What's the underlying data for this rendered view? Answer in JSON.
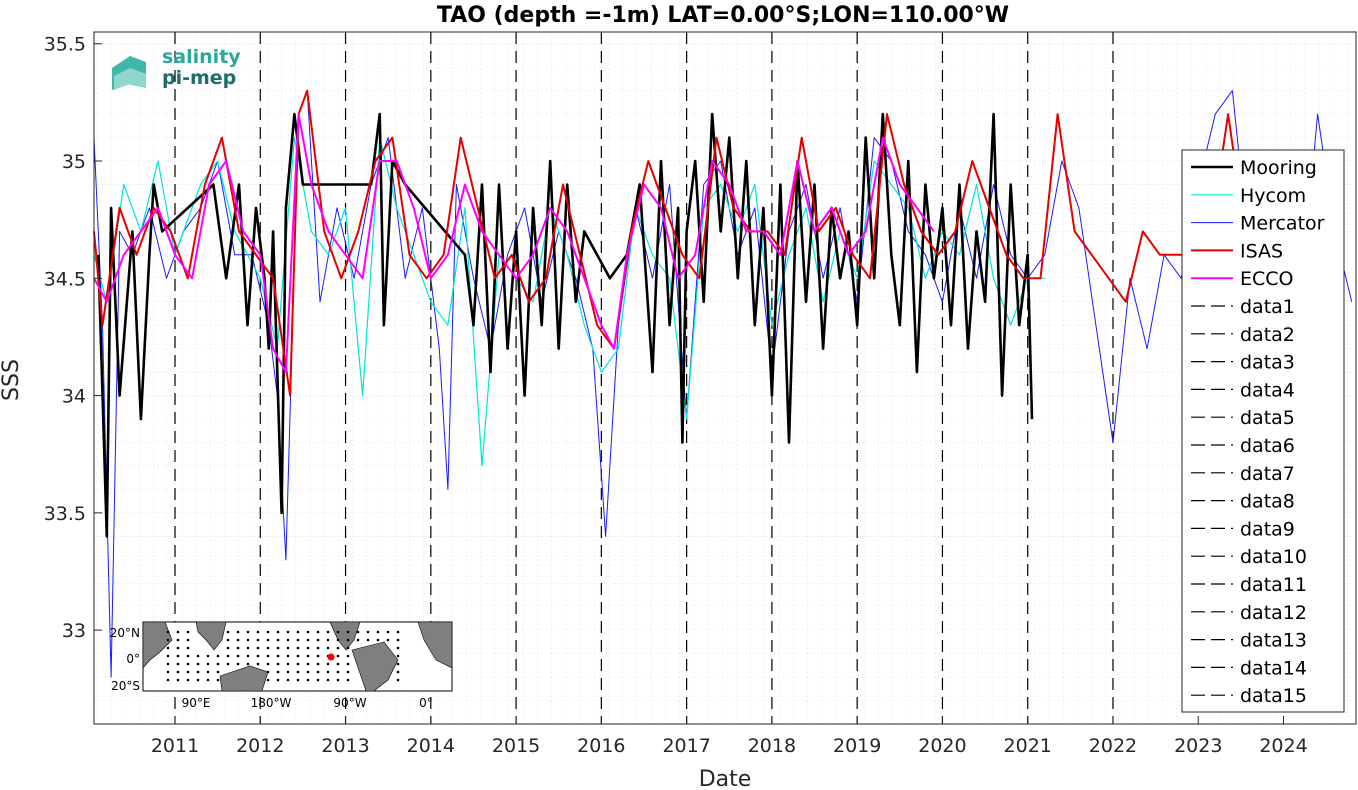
{
  "chart_data": {
    "type": "line",
    "title": "TAO (depth =-1m) LAT=0.00°S;LON=110.00°W",
    "xlabel": "Date",
    "ylabel": "SSS",
    "xlim": [
      2010.05,
      2024.85
    ],
    "ylim": [
      32.6,
      35.55
    ],
    "x_ticks": [
      "2011",
      "2012",
      "2013",
      "2014",
      "2015",
      "2016",
      "2017",
      "2018",
      "2019",
      "2020",
      "2021",
      "2022",
      "2023",
      "2024"
    ],
    "x_tick_values": [
      2011,
      2012,
      2013,
      2014,
      2015,
      2016,
      2017,
      2018,
      2019,
      2020,
      2021,
      2022,
      2023,
      2024
    ],
    "y_ticks": [
      "33",
      "33.5",
      "34",
      "34.5",
      "35",
      "35.5"
    ],
    "y_tick_values": [
      33,
      33.5,
      34,
      34.5,
      35,
      35.5
    ],
    "grid": true,
    "legend_position": "right",
    "year_boundaries": [
      2011,
      2012,
      2013,
      2014,
      2015,
      2016,
      2017,
      2018,
      2019,
      2020,
      2021,
      2022
    ],
    "series": [
      {
        "name": "Mooring",
        "color": "#000000",
        "width": 2.6,
        "x": [
          2010.1,
          2010.2,
          2010.25,
          2010.35,
          2010.5,
          2010.6,
          2010.7,
          2010.75,
          2010.85,
          2011.45,
          2011.6,
          2011.75,
          2011.85,
          2011.95,
          2012.05,
          2012.1,
          2012.15,
          2012.2,
          2012.25,
          2012.3,
          2012.4,
          2012.5,
          2013.3,
          2013.4,
          2013.45,
          2013.55,
          2013.7,
          2014.4,
          2014.5,
          2014.6,
          2014.7,
          2014.8,
          2014.9,
          2015.0,
          2015.1,
          2015.2,
          2015.3,
          2015.4,
          2015.5,
          2015.6,
          2015.7,
          2015.8,
          2016.1,
          2016.3,
          2016.45,
          2016.6,
          2016.7,
          2016.8,
          2016.9,
          2016.95,
          2017.0,
          2017.1,
          2017.2,
          2017.3,
          2017.4,
          2017.5,
          2017.6,
          2017.7,
          2017.8,
          2017.9,
          2018.0,
          2018.1,
          2018.2,
          2018.3,
          2018.4,
          2018.5,
          2018.6,
          2018.7,
          2018.8,
          2018.9,
          2019.0,
          2019.1,
          2019.2,
          2019.3,
          2019.4,
          2019.5,
          2019.6,
          2019.7,
          2019.8,
          2019.9,
          2020.0,
          2020.1,
          2020.2,
          2020.3,
          2020.4,
          2020.5,
          2020.6,
          2020.7,
          2020.8,
          2020.9,
          2021.0,
          2021.05
        ],
        "y": [
          34.6,
          33.4,
          34.8,
          34.0,
          34.7,
          33.9,
          34.6,
          34.9,
          34.7,
          34.9,
          34.5,
          34.9,
          34.3,
          34.8,
          34.5,
          34.2,
          34.7,
          34.1,
          33.5,
          34.8,
          35.2,
          34.9,
          34.9,
          35.2,
          34.3,
          35.0,
          34.9,
          34.6,
          34.3,
          34.9,
          34.1,
          34.9,
          34.2,
          34.7,
          34.0,
          34.8,
          34.3,
          35.0,
          34.2,
          34.9,
          34.4,
          34.7,
          34.5,
          34.6,
          34.9,
          34.1,
          35.0,
          34.3,
          34.8,
          33.8,
          34.7,
          35.0,
          34.4,
          35.2,
          34.7,
          35.1,
          34.5,
          35.0,
          34.3,
          34.8,
          34.0,
          34.9,
          33.8,
          35.0,
          34.4,
          34.9,
          34.2,
          34.8,
          34.5,
          34.7,
          34.3,
          35.1,
          34.5,
          35.2,
          34.6,
          34.3,
          35.0,
          34.1,
          34.9,
          34.5,
          34.8,
          34.3,
          34.9,
          34.2,
          34.7,
          34.4,
          35.2,
          34.0,
          34.9,
          34.3,
          34.6,
          33.9
        ]
      },
      {
        "name": "Hycom",
        "color": "#00e5d8",
        "width": 1.2,
        "x": [
          2010.05,
          2010.2,
          2010.4,
          2010.6,
          2010.8,
          2011.0,
          2011.3,
          2011.5,
          2011.7,
          2012.0,
          2012.2,
          2012.4,
          2012.6,
          2012.8,
          2013.0,
          2013.2,
          2013.4,
          2013.6,
          2013.8,
          2014.0,
          2014.2,
          2014.4,
          2014.6,
          2014.8,
          2015.0,
          2015.2,
          2015.4,
          2015.6,
          2015.8,
          2016.0,
          2016.2,
          2016.4,
          2016.6,
          2016.8,
          2017.0,
          2017.2,
          2017.4,
          2017.6,
          2017.8,
          2018.0,
          2018.2,
          2018.4,
          2018.6,
          2018.8,
          2019.0,
          2019.2,
          2019.4,
          2019.6,
          2019.8,
          2020.0,
          2020.2,
          2020.4,
          2020.6,
          2020.8,
          2021.0,
          2021.2
        ],
        "y": [
          34.6,
          34.4,
          34.9,
          34.7,
          35.0,
          34.6,
          34.9,
          35.0,
          34.7,
          34.5,
          34.2,
          35.1,
          34.7,
          34.6,
          34.8,
          34.0,
          35.1,
          34.8,
          34.6,
          34.4,
          34.3,
          34.8,
          33.7,
          34.6,
          34.5,
          34.4,
          34.8,
          34.6,
          34.3,
          34.1,
          34.2,
          34.8,
          34.6,
          34.5,
          33.9,
          34.8,
          34.9,
          34.7,
          34.9,
          34.3,
          34.6,
          34.8,
          34.4,
          34.7,
          34.5,
          35.0,
          34.9,
          34.8,
          34.5,
          34.7,
          34.6,
          34.9,
          34.5,
          34.3,
          34.5,
          34.5
        ]
      },
      {
        "name": "Mercator",
        "color": "#1a1aff",
        "width": 1.0,
        "x": [
          2010.05,
          2010.15,
          2010.25,
          2010.35,
          2010.5,
          2010.7,
          2010.9,
          2011.1,
          2011.3,
          2011.5,
          2011.7,
          2011.9,
          2012.1,
          2012.2,
          2012.3,
          2012.45,
          2012.55,
          2012.7,
          2012.9,
          2013.1,
          2013.3,
          2013.5,
          2013.7,
          2013.9,
          2014.1,
          2014.2,
          2014.3,
          2014.5,
          2014.7,
          2014.9,
          2015.1,
          2015.3,
          2015.5,
          2015.7,
          2015.9,
          2016.05,
          2016.2,
          2016.4,
          2016.6,
          2016.8,
          2017.0,
          2017.2,
          2017.4,
          2017.6,
          2017.8,
          2018.0,
          2018.2,
          2018.4,
          2018.6,
          2018.8,
          2019.0,
          2019.2,
          2019.4,
          2019.6,
          2019.8,
          2020.0,
          2020.2,
          2020.4,
          2020.6,
          2020.8,
          2021.0,
          2021.2,
          2021.4,
          2021.6,
          2021.8,
          2022.0,
          2022.2,
          2022.4,
          2022.6,
          2022.8,
          2023.0,
          2023.2,
          2023.4,
          2023.6,
          2023.8,
          2024.0,
          2024.2,
          2024.4,
          2024.6,
          2024.8
        ],
        "y": [
          35.1,
          34.3,
          32.8,
          34.7,
          34.6,
          34.8,
          34.5,
          34.7,
          34.8,
          35.0,
          34.6,
          34.6,
          34.3,
          34.0,
          33.3,
          35.2,
          35.3,
          34.4,
          34.8,
          34.5,
          34.9,
          35.1,
          34.5,
          34.8,
          34.2,
          33.6,
          34.9,
          34.5,
          34.2,
          34.6,
          34.8,
          34.4,
          34.7,
          34.5,
          34.2,
          33.4,
          34.3,
          34.8,
          34.5,
          34.9,
          33.9,
          34.9,
          35.0,
          34.6,
          34.8,
          34.1,
          34.7,
          34.9,
          34.5,
          34.8,
          34.4,
          35.1,
          35.0,
          34.7,
          34.6,
          34.4,
          34.8,
          34.5,
          34.9,
          34.6,
          34.5,
          34.6,
          35.0,
          34.8,
          34.3,
          33.8,
          34.5,
          34.2,
          34.6,
          34.5,
          34.9,
          35.2,
          35.3,
          34.6,
          34.8,
          34.6,
          34.4,
          35.2,
          34.7,
          34.4
        ]
      },
      {
        "name": "ISAS",
        "color": "#e60000",
        "width": 2.0,
        "x": [
          2010.05,
          2010.15,
          2010.35,
          2010.55,
          2010.75,
          2010.95,
          2011.15,
          2011.35,
          2011.55,
          2011.75,
          2011.95,
          2012.15,
          2012.35,
          2012.45,
          2012.55,
          2012.75,
          2012.95,
          2013.15,
          2013.35,
          2013.55,
          2013.75,
          2013.95,
          2014.15,
          2014.35,
          2014.55,
          2014.75,
          2014.95,
          2015.15,
          2015.35,
          2015.55,
          2015.75,
          2015.95,
          2016.15,
          2016.35,
          2016.55,
          2016.75,
          2016.95,
          2017.15,
          2017.35,
          2017.55,
          2017.75,
          2017.95,
          2018.15,
          2018.35,
          2018.55,
          2018.75,
          2018.95,
          2019.15,
          2019.35,
          2019.55,
          2019.75,
          2019.95,
          2020.15,
          2020.35,
          2020.55,
          2020.75,
          2020.95,
          2021.15,
          2021.35,
          2021.55,
          2021.75,
          2021.95,
          2022.15,
          2022.35,
          2022.55,
          2022.75,
          2022.95,
          2023.15,
          2023.35,
          2023.55,
          2023.75,
          2023.95,
          2024.15,
          2024.35
        ],
        "y": [
          34.7,
          34.3,
          34.8,
          34.6,
          34.8,
          34.7,
          34.5,
          34.9,
          35.1,
          34.7,
          34.6,
          34.5,
          34.0,
          35.2,
          35.3,
          34.7,
          34.5,
          34.7,
          35.0,
          35.1,
          34.6,
          34.5,
          34.6,
          35.1,
          34.8,
          34.5,
          34.6,
          34.4,
          34.5,
          34.9,
          34.6,
          34.3,
          34.2,
          34.7,
          35.0,
          34.8,
          34.6,
          34.5,
          35.1,
          34.8,
          34.7,
          34.7,
          34.6,
          35.1,
          34.7,
          34.8,
          34.6,
          34.5,
          35.2,
          34.9,
          34.7,
          34.6,
          34.7,
          35.0,
          34.8,
          34.6,
          34.5,
          34.5,
          35.2,
          34.7,
          34.6,
          34.5,
          34.4,
          34.7,
          34.6,
          34.6,
          34.6,
          34.7,
          35.2,
          34.7,
          34.6,
          34.6,
          34.7,
          35.0
        ]
      },
      {
        "name": "ECCO",
        "color": "#ff00ff",
        "width": 2.0,
        "x": [
          2010.05,
          2010.2,
          2010.4,
          2010.6,
          2010.8,
          2011.0,
          2011.2,
          2011.4,
          2011.6,
          2011.8,
          2012.0,
          2012.15,
          2012.3,
          2012.45,
          2012.6,
          2012.8,
          2013.0,
          2013.2,
          2013.4,
          2013.6,
          2013.8,
          2014.0,
          2014.2,
          2014.4,
          2014.6,
          2014.8,
          2015.0,
          2015.2,
          2015.4,
          2015.6,
          2015.8,
          2016.0,
          2016.15,
          2016.3,
          2016.5,
          2016.7,
          2016.9,
          2017.1,
          2017.3,
          2017.5,
          2017.7,
          2017.9,
          2018.1,
          2018.3,
          2018.5,
          2018.7,
          2018.9,
          2019.1,
          2019.3,
          2019.5,
          2019.7,
          2019.9
        ],
        "y": [
          34.5,
          34.4,
          34.6,
          34.7,
          34.8,
          34.6,
          34.5,
          34.9,
          35.0,
          34.7,
          34.6,
          34.2,
          34.1,
          35.2,
          34.9,
          34.7,
          34.6,
          34.5,
          35.0,
          35.0,
          34.8,
          34.5,
          34.6,
          34.9,
          34.7,
          34.6,
          34.5,
          34.6,
          34.8,
          34.7,
          34.5,
          34.3,
          34.2,
          34.6,
          34.9,
          34.8,
          34.5,
          34.6,
          35.0,
          34.9,
          34.7,
          34.7,
          34.6,
          35.0,
          34.7,
          34.8,
          34.6,
          34.7,
          35.1,
          34.9,
          34.8,
          34.7
        ]
      }
    ],
    "legend_dashed": [
      "data1",
      "data2",
      "data3",
      "data4",
      "data5",
      "data6",
      "data7",
      "data8",
      "data9",
      "data10",
      "data11",
      "data12",
      "data13",
      "data14",
      "data15"
    ]
  },
  "logo": {
    "line1": "salinity",
    "line2": "pi-mep",
    "color1": "#2aa89a",
    "color2": "#1e6e6a"
  },
  "inset_map": {
    "lat_labels": [
      "20°N",
      "0°",
      "20°S"
    ],
    "lon_labels": [
      "90°E",
      "180°W",
      "90°W",
      "0°"
    ],
    "marker_color": "#ff0000"
  }
}
